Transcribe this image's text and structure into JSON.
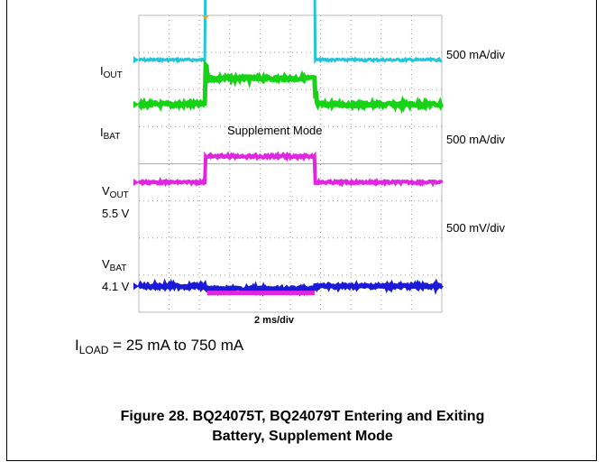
{
  "chart_data": {
    "type": "line",
    "xlabel": "2 ms/div",
    "x_divisions": 10,
    "y_divisions": 8,
    "grid": true,
    "annotation": "Supplement Mode",
    "channels": [
      {
        "label_main": "I",
        "label_sub": "OUT",
        "level_text": "",
        "scale": "500 mA/div",
        "color": "#22c6d8",
        "thickness": 3,
        "baseline_div": 1.2,
        "step_div": -1.5,
        "noise_div": 0.03,
        "shape": "step_up"
      },
      {
        "label_main": "I",
        "label_sub": "BAT",
        "level_text": "",
        "scale": "500 mA/div",
        "color": "#16d316",
        "thickness": 5,
        "baseline_div": 2.4,
        "step_div": 1.7,
        "noise_div": 0.05,
        "shape": "step_down"
      },
      {
        "label_main": "V",
        "label_sub": "OUT",
        "level_text": "5.5 V",
        "scale": "500 mV/div",
        "color": "#e026e0",
        "thickness": 4,
        "baseline_div": 4.5,
        "step_div": 3.8,
        "noise_div": 0.03,
        "shape": "vout"
      },
      {
        "label_main": "V",
        "label_sub": "BAT",
        "level_text": "4.1 V",
        "scale": "",
        "color": "#1a1ad8",
        "thickness": 5,
        "baseline_div": 7.3,
        "step_div": 0.3,
        "noise_div": 0.04,
        "shape": "vbat"
      }
    ],
    "transitions_div": {
      "enter": 2.2,
      "exit": 5.8
    }
  },
  "load_label": {
    "main": "I",
    "sub": "LOAD",
    "rest": " = 25 mA to 750 mA"
  },
  "caption": {
    "line1": "Figure 28. BQ24075T, BQ24079T Entering and Exiting",
    "line2": "Battery, Supplement Mode"
  }
}
